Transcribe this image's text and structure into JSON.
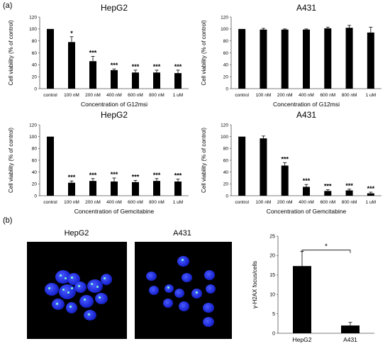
{
  "panel_labels": {
    "a": "(a)",
    "b": "(b)"
  },
  "microscopy": [
    {
      "title": "HepG2"
    },
    {
      "title": "A431"
    }
  ],
  "chart_data": [
    {
      "id": "c1",
      "type": "bar",
      "title": "HepG2",
      "xlabel": "Concentration of G12msi",
      "ylabel": "Cell viability (% of control)",
      "ylim": [
        0,
        120
      ],
      "yticks": [
        0,
        20,
        40,
        60,
        80,
        100,
        120
      ],
      "categories": [
        "control",
        "100 nM",
        "200 nM",
        "400 nM",
        "600 nM",
        "800 nM",
        "1 uM"
      ],
      "values": [
        100,
        78,
        46,
        31,
        27,
        27,
        26
      ],
      "errors": [
        0,
        9,
        8,
        2,
        4,
        4,
        5
      ],
      "significance": [
        "",
        "*",
        "***",
        "***",
        "***",
        "***",
        "***"
      ]
    },
    {
      "id": "c2",
      "type": "bar",
      "title": "A431",
      "xlabel": "Concentration of G12msi",
      "ylabel": "Cell viability (% of control)",
      "ylim": [
        0,
        120
      ],
      "yticks": [
        0,
        20,
        40,
        60,
        80,
        100,
        120
      ],
      "categories": [
        "control",
        "100 nM",
        "200 nM",
        "400 nM",
        "600 nM",
        "800 nM",
        "1 uM"
      ],
      "values": [
        100,
        99,
        99,
        99,
        101,
        102,
        94
      ],
      "errors": [
        0,
        2,
        1,
        1,
        2,
        4,
        9
      ],
      "significance": [
        "",
        "",
        "",
        "",
        "",
        "",
        ""
      ]
    },
    {
      "id": "c3",
      "type": "bar",
      "title": "HepG2",
      "xlabel": "Concentration of Gemcitabine",
      "ylabel": "Cell viability (% of control)",
      "ylim": [
        0,
        120
      ],
      "yticks": [
        0,
        20,
        40,
        60,
        80,
        100,
        120
      ],
      "categories": [
        "control",
        "100 nM",
        "200 nM",
        "400 nM",
        "600 nM",
        "800 nM",
        "1 uM"
      ],
      "values": [
        100,
        22,
        25,
        24,
        23,
        25,
        24
      ],
      "errors": [
        0,
        3,
        4,
        6,
        3,
        4,
        4
      ],
      "significance": [
        "",
        "***",
        "***",
        "***",
        "***",
        "***",
        "***"
      ]
    },
    {
      "id": "c4",
      "type": "bar",
      "title": "A431",
      "xlabel": "Concentration of Gemcitabine",
      "ylabel": "Cell viability (% of control)",
      "ylim": [
        0,
        120
      ],
      "yticks": [
        0,
        20,
        40,
        60,
        80,
        100,
        120
      ],
      "categories": [
        "control",
        "100 nM",
        "200 nM",
        "400 nM",
        "600 nM",
        "800 nM",
        "1 uM"
      ],
      "values": [
        100,
        97,
        51,
        15,
        8,
        9,
        4
      ],
      "errors": [
        0,
        4,
        5,
        4,
        2,
        2,
        2
      ],
      "significance": [
        "",
        "",
        "***",
        "***",
        "***",
        "***",
        "***"
      ]
    },
    {
      "id": "c5",
      "type": "bar",
      "title": "",
      "xlabel": "",
      "ylabel": "γ-H2AX focus/cells",
      "ylim": [
        0,
        25
      ],
      "yticks": [
        0,
        5,
        10,
        15,
        20,
        25
      ],
      "categories": [
        "HepG2",
        "A431"
      ],
      "values": [
        17.3,
        2.0
      ],
      "errors": [
        3.8,
        0.8
      ],
      "significance": [],
      "bracket": {
        "label": "*",
        "between": [
          0,
          1
        ]
      }
    }
  ]
}
